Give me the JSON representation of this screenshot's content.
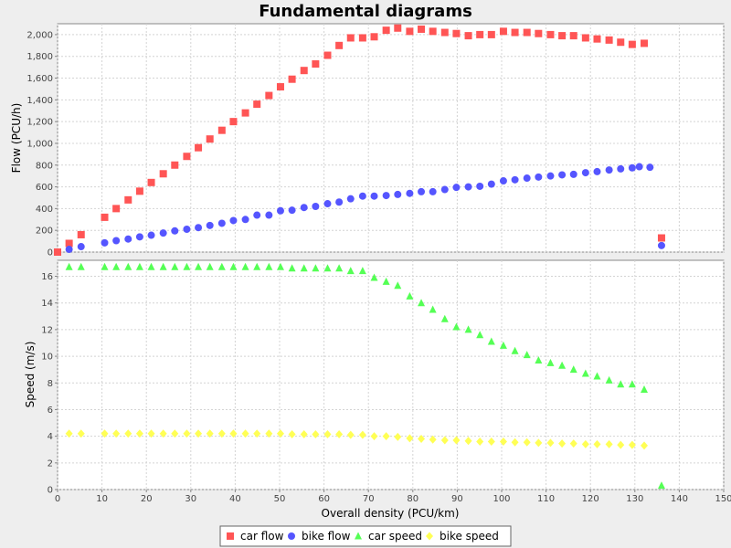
{
  "chart_data": {
    "type": "scatter",
    "title": "Fundamental diagrams",
    "xlabel": "Overall density (PCU/km)",
    "xlim": [
      0,
      150
    ],
    "xticks": [
      "0",
      "10",
      "20",
      "30",
      "40",
      "50",
      "60",
      "70",
      "80",
      "90",
      "100",
      "110",
      "120",
      "130",
      "140",
      "150"
    ],
    "grid": true,
    "legend_position": "bottom",
    "panels": [
      {
        "ylabel": "Flow (PCU/h)",
        "ylim": [
          0,
          2100
        ],
        "yticks": [
          "0",
          "200",
          "400",
          "600",
          "800",
          "1,000",
          "1,200",
          "1,400",
          "1,600",
          "1,800",
          "2,000"
        ],
        "series": [
          {
            "name": "car flow",
            "marker": "square",
            "color": "#ff5555",
            "points": [
              [
                0,
                0
              ],
              [
                2.6,
                80
              ],
              [
                5.3,
                160
              ],
              [
                10.6,
                320
              ],
              [
                13.2,
                400
              ],
              [
                15.9,
                480
              ],
              [
                18.5,
                560
              ],
              [
                21.1,
                640
              ],
              [
                23.8,
                720
              ],
              [
                26.4,
                800
              ],
              [
                29.1,
                880
              ],
              [
                31.7,
                960
              ],
              [
                34.3,
                1040
              ],
              [
                37.0,
                1120
              ],
              [
                39.6,
                1200
              ],
              [
                42.3,
                1280
              ],
              [
                44.9,
                1360
              ],
              [
                47.6,
                1440
              ],
              [
                50.2,
                1520
              ],
              [
                52.8,
                1590
              ],
              [
                55.5,
                1670
              ],
              [
                58.1,
                1730
              ],
              [
                60.8,
                1810
              ],
              [
                63.4,
                1900
              ],
              [
                66.0,
                1970
              ],
              [
                68.7,
                1970
              ],
              [
                71.3,
                1980
              ],
              [
                74.0,
                2040
              ],
              [
                76.6,
                2060
              ],
              [
                79.3,
                2030
              ],
              [
                81.9,
                2050
              ],
              [
                84.5,
                2030
              ],
              [
                87.2,
                2020
              ],
              [
                89.8,
                2010
              ],
              [
                92.5,
                1990
              ],
              [
                95.1,
                2000
              ],
              [
                97.7,
                2000
              ],
              [
                100.4,
                2030
              ],
              [
                103.0,
                2020
              ],
              [
                105.7,
                2020
              ],
              [
                108.3,
                2010
              ],
              [
                111.0,
                2000
              ],
              [
                113.6,
                1990
              ],
              [
                116.2,
                1990
              ],
              [
                118.9,
                1970
              ],
              [
                121.5,
                1960
              ],
              [
                124.2,
                1950
              ],
              [
                126.8,
                1930
              ],
              [
                129.4,
                1910
              ],
              [
                132.1,
                1920
              ],
              [
                136.0,
                130
              ]
            ]
          },
          {
            "name": "bike flow",
            "marker": "circle",
            "color": "#5555ff",
            "points": [
              [
                2.6,
                25
              ],
              [
                5.3,
                50
              ],
              [
                10.6,
                85
              ],
              [
                13.2,
                105
              ],
              [
                15.9,
                120
              ],
              [
                18.5,
                140
              ],
              [
                21.1,
                155
              ],
              [
                23.8,
                175
              ],
              [
                26.4,
                195
              ],
              [
                29.1,
                210
              ],
              [
                31.7,
                225
              ],
              [
                34.3,
                245
              ],
              [
                37.0,
                265
              ],
              [
                39.6,
                290
              ],
              [
                42.3,
                300
              ],
              [
                44.9,
                340
              ],
              [
                47.6,
                340
              ],
              [
                50.2,
                380
              ],
              [
                52.8,
                385
              ],
              [
                55.5,
                410
              ],
              [
                58.1,
                420
              ],
              [
                60.8,
                445
              ],
              [
                63.4,
                460
              ],
              [
                66.0,
                490
              ],
              [
                68.7,
                515
              ],
              [
                71.3,
                515
              ],
              [
                74.0,
                520
              ],
              [
                76.6,
                530
              ],
              [
                79.3,
                540
              ],
              [
                81.9,
                555
              ],
              [
                84.5,
                555
              ],
              [
                87.2,
                575
              ],
              [
                89.8,
                595
              ],
              [
                92.5,
                600
              ],
              [
                95.1,
                605
              ],
              [
                97.7,
                625
              ],
              [
                100.4,
                655
              ],
              [
                103.0,
                665
              ],
              [
                105.7,
                680
              ],
              [
                108.3,
                690
              ],
              [
                111.0,
                700
              ],
              [
                113.6,
                710
              ],
              [
                116.2,
                715
              ],
              [
                118.9,
                730
              ],
              [
                121.5,
                740
              ],
              [
                124.2,
                755
              ],
              [
                126.8,
                765
              ],
              [
                129.4,
                775
              ],
              [
                131.0,
                785
              ],
              [
                133.4,
                780
              ],
              [
                136.0,
                60
              ]
            ]
          }
        ]
      },
      {
        "ylabel": "Speed (m/s)",
        "ylim": [
          0,
          17.2
        ],
        "yticks": [
          "0",
          "2",
          "4",
          "6",
          "8",
          "10",
          "12",
          "14",
          "16"
        ],
        "series": [
          {
            "name": "car speed",
            "marker": "triangle",
            "color": "#55ff55",
            "points": [
              [
                2.6,
                16.7
              ],
              [
                5.3,
                16.7
              ],
              [
                10.6,
                16.7
              ],
              [
                13.2,
                16.7
              ],
              [
                15.9,
                16.7
              ],
              [
                18.5,
                16.7
              ],
              [
                21.1,
                16.7
              ],
              [
                23.8,
                16.7
              ],
              [
                26.4,
                16.7
              ],
              [
                29.1,
                16.7
              ],
              [
                31.7,
                16.7
              ],
              [
                34.3,
                16.7
              ],
              [
                37.0,
                16.7
              ],
              [
                39.6,
                16.7
              ],
              [
                42.3,
                16.7
              ],
              [
                44.9,
                16.7
              ],
              [
                47.6,
                16.7
              ],
              [
                50.2,
                16.7
              ],
              [
                52.8,
                16.6
              ],
              [
                55.5,
                16.6
              ],
              [
                58.1,
                16.6
              ],
              [
                60.8,
                16.6
              ],
              [
                63.4,
                16.6
              ],
              [
                66.0,
                16.4
              ],
              [
                68.7,
                16.4
              ],
              [
                71.3,
                15.9
              ],
              [
                74.0,
                15.6
              ],
              [
                76.6,
                15.3
              ],
              [
                79.3,
                14.5
              ],
              [
                81.9,
                14.0
              ],
              [
                84.5,
                13.5
              ],
              [
                87.2,
                12.8
              ],
              [
                89.8,
                12.2
              ],
              [
                92.5,
                12.0
              ],
              [
                95.1,
                11.6
              ],
              [
                97.7,
                11.1
              ],
              [
                100.4,
                10.8
              ],
              [
                103.0,
                10.4
              ],
              [
                105.7,
                10.1
              ],
              [
                108.3,
                9.7
              ],
              [
                111.0,
                9.5
              ],
              [
                113.6,
                9.3
              ],
              [
                116.2,
                9.0
              ],
              [
                118.9,
                8.7
              ],
              [
                121.5,
                8.5
              ],
              [
                124.2,
                8.2
              ],
              [
                126.8,
                7.9
              ],
              [
                129.4,
                7.9
              ],
              [
                132.1,
                7.5
              ],
              [
                136.0,
                0.3
              ]
            ]
          },
          {
            "name": "bike speed",
            "marker": "diamond",
            "color": "#ffff55",
            "points": [
              [
                2.6,
                4.2
              ],
              [
                5.3,
                4.2
              ],
              [
                10.6,
                4.2
              ],
              [
                13.2,
                4.2
              ],
              [
                15.9,
                4.2
              ],
              [
                18.5,
                4.2
              ],
              [
                21.1,
                4.2
              ],
              [
                23.8,
                4.2
              ],
              [
                26.4,
                4.2
              ],
              [
                29.1,
                4.2
              ],
              [
                31.7,
                4.2
              ],
              [
                34.3,
                4.2
              ],
              [
                37.0,
                4.2
              ],
              [
                39.6,
                4.2
              ],
              [
                42.3,
                4.2
              ],
              [
                44.9,
                4.2
              ],
              [
                47.6,
                4.2
              ],
              [
                50.2,
                4.2
              ],
              [
                52.8,
                4.15
              ],
              [
                55.5,
                4.15
              ],
              [
                58.1,
                4.15
              ],
              [
                60.8,
                4.15
              ],
              [
                63.4,
                4.15
              ],
              [
                66.0,
                4.1
              ],
              [
                68.7,
                4.1
              ],
              [
                71.3,
                4.0
              ],
              [
                74.0,
                4.0
              ],
              [
                76.6,
                3.95
              ],
              [
                79.3,
                3.85
              ],
              [
                81.9,
                3.8
              ],
              [
                84.5,
                3.75
              ],
              [
                87.2,
                3.7
              ],
              [
                89.8,
                3.7
              ],
              [
                92.5,
                3.65
              ],
              [
                95.1,
                3.6
              ],
              [
                97.7,
                3.6
              ],
              [
                100.4,
                3.6
              ],
              [
                103.0,
                3.55
              ],
              [
                105.7,
                3.55
              ],
              [
                108.3,
                3.5
              ],
              [
                111.0,
                3.5
              ],
              [
                113.6,
                3.45
              ],
              [
                116.2,
                3.45
              ],
              [
                118.9,
                3.4
              ],
              [
                121.5,
                3.4
              ],
              [
                124.2,
                3.4
              ],
              [
                126.8,
                3.35
              ],
              [
                129.4,
                3.35
              ],
              [
                132.1,
                3.3
              ]
            ]
          }
        ]
      }
    ]
  }
}
